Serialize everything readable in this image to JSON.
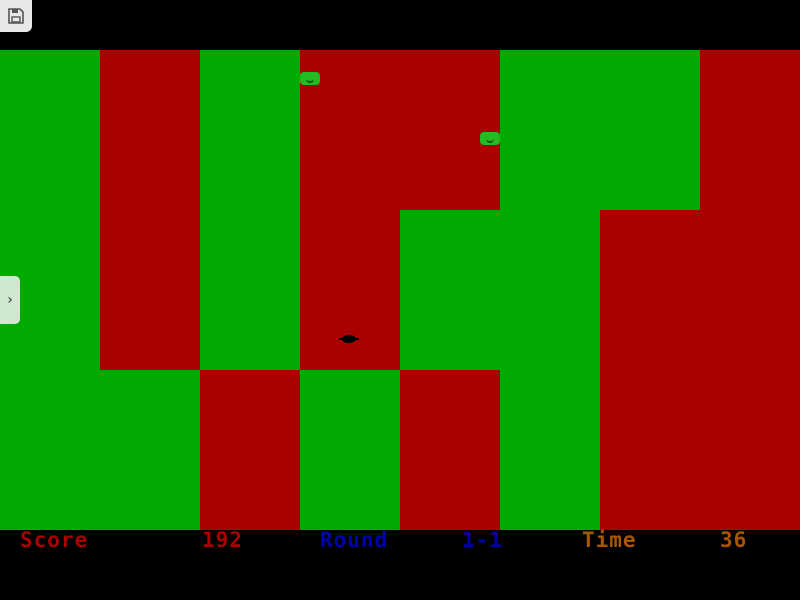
{
  "colors": {
    "green": "#00aa00",
    "red": "#aa0000",
    "score": "#aa0000",
    "round": "#0000aa",
    "time": "#aa5500"
  },
  "board": [
    [
      "green",
      "red",
      "green",
      "red",
      "red",
      "green",
      "green",
      "red"
    ],
    [
      "green",
      "red",
      "green",
      "red",
      "green",
      "green",
      "red",
      "red"
    ],
    [
      "green",
      "green",
      "red",
      "green",
      "red",
      "green",
      "red",
      "red"
    ]
  ],
  "hud": {
    "score_label": "Score",
    "score": "192",
    "round_label": "Round",
    "round": "1-1",
    "time_label": "Time",
    "time": "36"
  },
  "icons": {
    "save": "floppy-disk-icon",
    "sidebar": "chevron-right-icon"
  }
}
